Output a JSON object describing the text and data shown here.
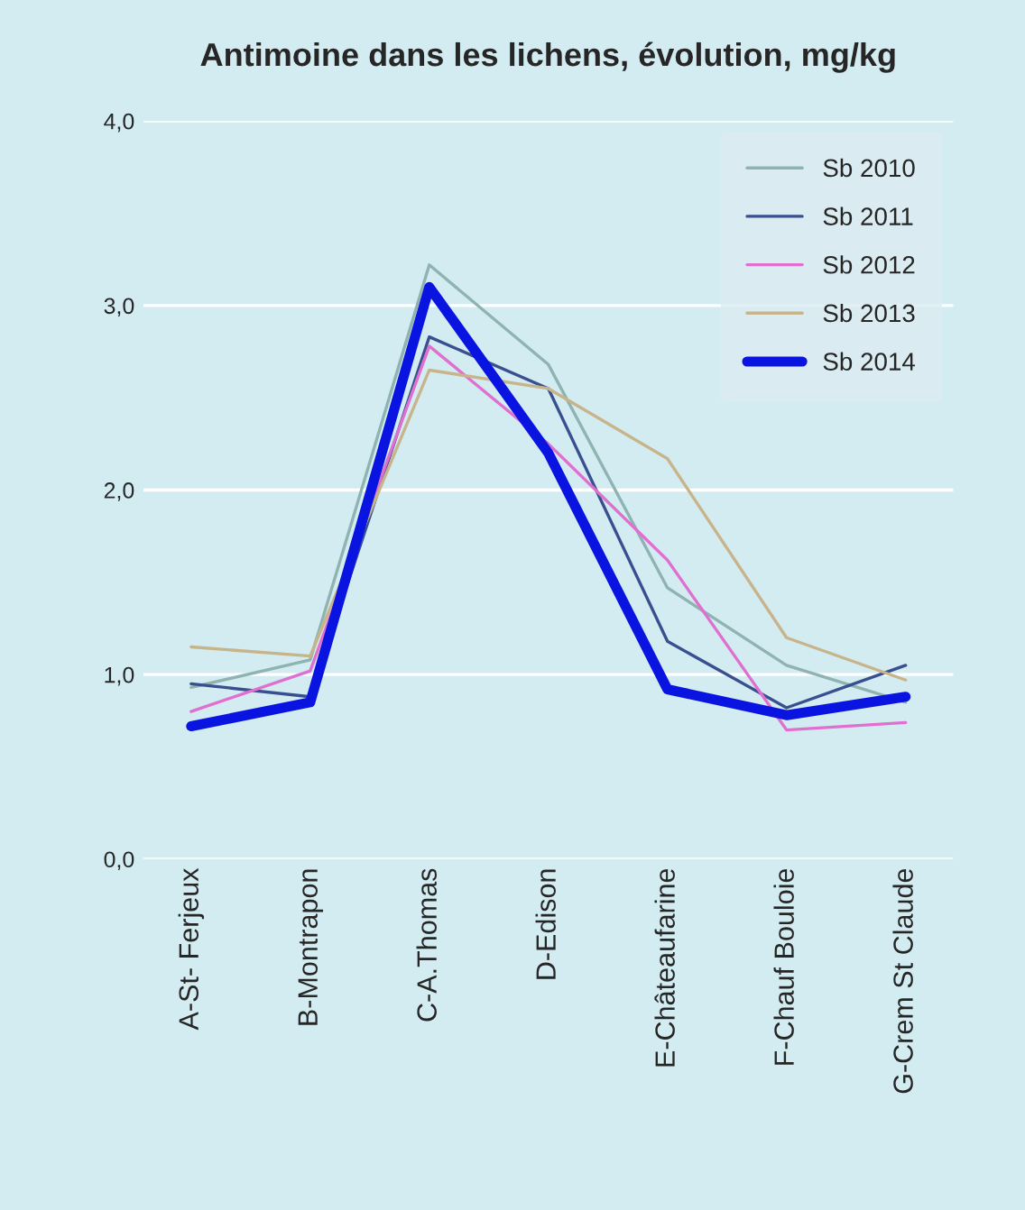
{
  "chart_data": {
    "type": "line",
    "title": "Antimoine dans les lichens, évolution, mg/kg",
    "categories": [
      "A-St- Ferjeux",
      "B-Montrapon",
      "C-A.Thomas",
      "D-Edison",
      "E-Châteaufarine",
      "F-Chauf Bouloie",
      "G-Crem St Claude"
    ],
    "series": [
      {
        "name": "Sb 2010",
        "color": "#8fb3b0",
        "values": [
          0.93,
          1.08,
          3.22,
          2.68,
          1.47,
          1.05,
          0.85
        ]
      },
      {
        "name": "Sb 2011",
        "color": "#3a4f8f",
        "values": [
          0.95,
          0.88,
          2.83,
          2.55,
          1.18,
          0.82,
          1.05
        ]
      },
      {
        "name": "Sb 2012",
        "color": "#e070d0",
        "values": [
          0.8,
          1.02,
          2.78,
          2.25,
          1.62,
          0.7,
          0.74
        ]
      },
      {
        "name": "Sb 2013",
        "color": "#c8b48a",
        "values": [
          1.15,
          1.1,
          2.65,
          2.55,
          2.17,
          1.2,
          0.97
        ]
      },
      {
        "name": "Sb 2014",
        "color": "#0a14e0",
        "values": [
          0.72,
          0.85,
          3.1,
          2.2,
          0.92,
          0.78,
          0.88
        ]
      }
    ],
    "ylim": [
      0,
      4
    ],
    "yticks": [
      {
        "value": 0,
        "label": "0,0"
      },
      {
        "value": 1,
        "label": "1,0"
      },
      {
        "value": 2,
        "label": "2,0"
      },
      {
        "value": 3,
        "label": "3,0"
      },
      {
        "value": 4,
        "label": "4,0"
      }
    ],
    "grid": "y",
    "legend": "top right",
    "marker": "none",
    "line_style": "solid"
  }
}
